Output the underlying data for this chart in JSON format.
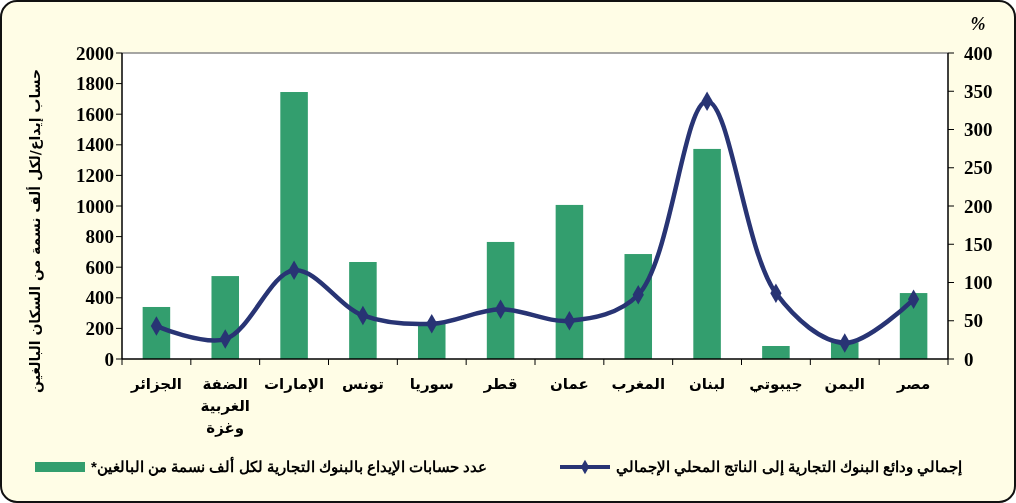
{
  "chart_data": {
    "type": "bar",
    "ylabel": "حساب إيداع/لكل ألف نسمة من السكان البالغين",
    "y2label": "%",
    "categories": [
      "الجزائر",
      "الضفة الغربية وغزة",
      "الإمارات",
      "تونس",
      "سوريا",
      "قطر",
      "عمان",
      "المغرب",
      "لبنان",
      "جيبوتي",
      "اليمن",
      "مصر"
    ],
    "series": [
      {
        "name": "عدد حسابات الإيداع بالبنوك التجارية لكل ألف نسمة من البالغين*",
        "color": "#339e6e",
        "values": [
          340,
          542,
          1745,
          634,
          230,
          765,
          1007,
          686,
          1373,
          85,
          110,
          431
        ]
      },
      {
        "name": "إجمالي ودائع البنوك التجارية إلى الناتج المحلي الإجمالي",
        "type": "line",
        "axis": "y2",
        "color": "#283474",
        "marker": "diamond",
        "values": [
          43,
          26,
          116,
          57,
          46,
          65,
          50,
          84,
          337,
          86,
          21,
          78
        ]
      }
    ],
    "ylim": [
      0,
      2000
    ],
    "yticks": [
      0,
      200,
      400,
      600,
      800,
      1000,
      1200,
      1400,
      1600,
      1800,
      2000
    ],
    "y2lim": [
      0,
      400
    ],
    "y2ticks": [
      0,
      50,
      100,
      150,
      200,
      250,
      300,
      350,
      400
    ],
    "grid": false,
    "legend": "bottom"
  }
}
